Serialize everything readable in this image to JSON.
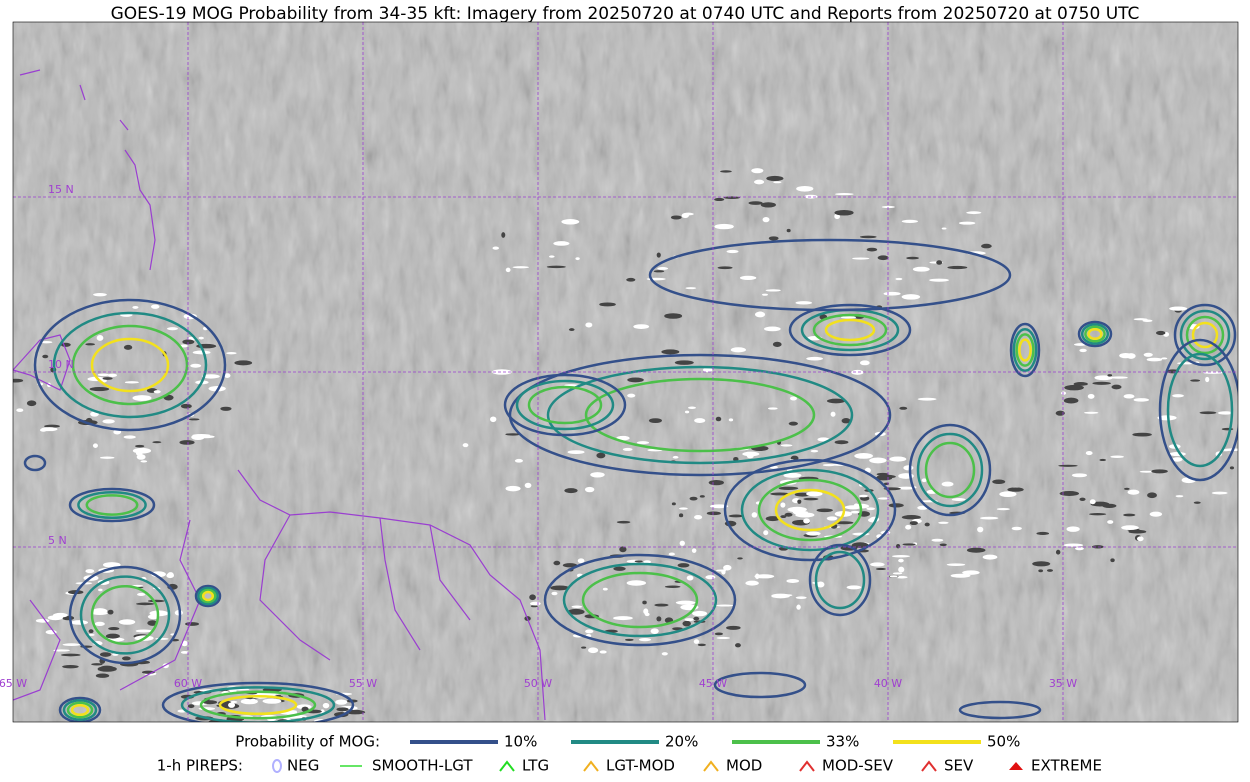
{
  "header": {
    "title": "GOES-19 MOG Probability from 34-35 kft: Imagery from 20250720 at 0740 UTC and Reports from 20250720 at 0750 UTC"
  },
  "map": {
    "lat_labels": [
      "15 N",
      "10 N",
      "5 N"
    ],
    "lon_labels": [
      "65 W",
      "60 W",
      "55 W",
      "50 W",
      "45 W",
      "40 W",
      "35 W"
    ]
  },
  "legend": {
    "mog_title": "Probability of MOG:",
    "mog_levels": [
      {
        "label": "10%",
        "color": "#34508a"
      },
      {
        "label": "20%",
        "color": "#218a84"
      },
      {
        "label": "33%",
        "color": "#4cc04a"
      },
      {
        "label": "50%",
        "color": "#f3e11c"
      }
    ],
    "pireps_title": "1-h PIREPS:",
    "pireps": [
      "NEG",
      "SMOOTH-LGT",
      "LTG",
      "LGT-MOD",
      "MOD",
      "MOD-SEV",
      "SEV",
      "EXTREME"
    ]
  }
}
